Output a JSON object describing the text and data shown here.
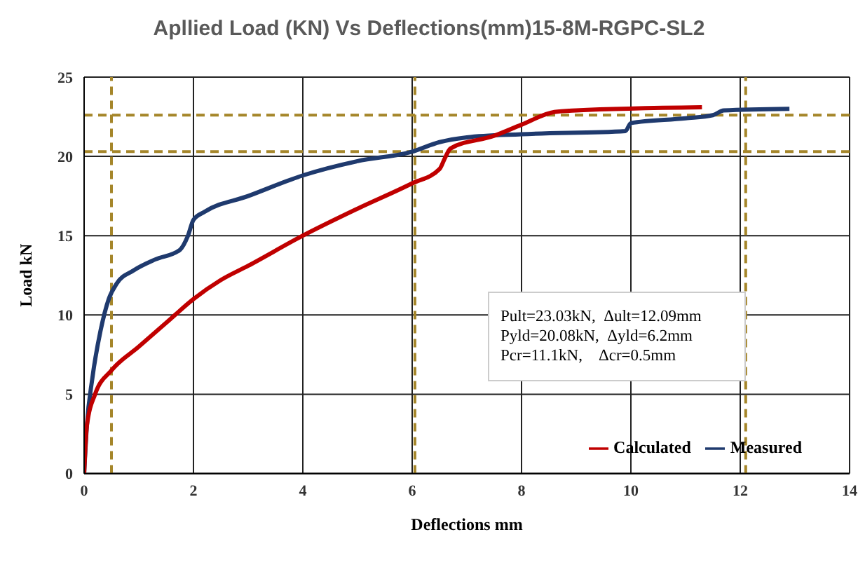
{
  "chart_data": {
    "type": "line",
    "title": "Apllied Load (KN) Vs Deflections(mm)15-8M-RGPC-SL2",
    "xlabel": "Deflections  mm",
    "ylabel": "Load kN",
    "xlim": [
      0,
      14
    ],
    "xticks": [
      0,
      2,
      4,
      6,
      8,
      10,
      12,
      14
    ],
    "ylim": [
      0,
      25
    ],
    "yticks": [
      0,
      5,
      10,
      15,
      20,
      25
    ],
    "grid": true,
    "legend": "bottom right",
    "marker": "none",
    "line_style": "solid",
    "series": [
      {
        "name": "Measured",
        "color": "#1f3a6e",
        "x": [
          0,
          0.05,
          0.15,
          0.3,
          0.45,
          0.6,
          0.9,
          1.3,
          1.75,
          1.9,
          2,
          2.2,
          3,
          4,
          5,
          6,
          6.5,
          7,
          8,
          9.9,
          10,
          11,
          11.5,
          11.7,
          12.9
        ],
        "values": [
          0,
          3,
          6,
          9,
          11,
          12,
          12.8,
          13.5,
          14.1,
          15,
          16,
          16.5,
          17.5,
          18.8,
          19.7,
          20.3,
          20.9,
          21.2,
          21.4,
          21.6,
          22.1,
          22.4,
          22.6,
          22.9,
          23.0
        ]
      },
      {
        "name": "Calculated",
        "color": "#c00000",
        "x": [
          0,
          0.05,
          0.2,
          0.5,
          1,
          1.5,
          2,
          2.5,
          3,
          4,
          5,
          6,
          6.5,
          6.6,
          6.7,
          7.5,
          8,
          8.6,
          9,
          11.3
        ],
        "values": [
          0,
          3,
          5,
          6.5,
          8,
          9.5,
          11,
          12.2,
          13.1,
          15,
          16.7,
          18.3,
          19.2,
          19.9,
          20.5,
          21.3,
          22,
          22.8,
          22.9,
          23.1
        ]
      }
    ],
    "ref_lines": [
      {
        "axis": "y",
        "value": 22.6,
        "color": "#a5862a",
        "line_style": "dashed"
      },
      {
        "axis": "y",
        "value": 20.3,
        "color": "#a5862a",
        "line_style": "dashed"
      },
      {
        "axis": "x",
        "value": 0.5,
        "color": "#a5862a",
        "line_style": "dashed"
      },
      {
        "axis": "x",
        "value": 6.05,
        "color": "#a5862a",
        "line_style": "dashed"
      },
      {
        "axis": "x",
        "value": 12.1,
        "color": "#a5862a",
        "line_style": "dashed"
      }
    ],
    "annotations": [
      "Pult=23.03kN,  Δult=12.09mm",
      "Pyld=20.08kN,  Δyld=6.2mm",
      "Pcr=11.1kN,    Δcr=0.5mm"
    ]
  }
}
